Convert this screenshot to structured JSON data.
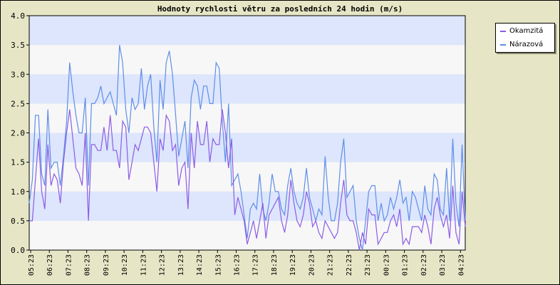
{
  "chart_data": {
    "type": "line",
    "title": "Hodnoty rychlosti větru za posledních 24 hodin (m/s)",
    "xlabel": "",
    "ylabel": "",
    "ylim": [
      0,
      4.0
    ],
    "y_ticks": [
      "0.0",
      "0.5",
      "1.0",
      "1.5",
      "2.0",
      "2.5",
      "3.0",
      "3.5",
      "4.0"
    ],
    "x_ticks": [
      "05:23",
      "06:23",
      "07:23",
      "08:23",
      "09:23",
      "10:23",
      "11:23",
      "12:23",
      "13:23",
      "14:23",
      "15:23",
      "16:23",
      "17:23",
      "18:23",
      "19:23",
      "20:23",
      "21:23",
      "22:23",
      "23:23",
      "00:23",
      "01:23",
      "02:23",
      "03:23",
      "04:23"
    ],
    "grid": true,
    "legend_position": "top-right",
    "series": [
      {
        "name": "Okamzitá",
        "color": "#8c5ce6",
        "values": [
          0.5,
          0.5,
          1.2,
          1.9,
          1.0,
          0.7,
          1.8,
          1.1,
          1.3,
          1.2,
          0.8,
          1.5,
          2.0,
          2.4,
          1.9,
          1.4,
          1.3,
          1.1,
          2.0,
          0.5,
          1.8,
          1.8,
          1.7,
          1.7,
          2.1,
          1.7,
          2.3,
          1.7,
          1.7,
          1.4,
          2.2,
          2.1,
          1.2,
          1.5,
          1.8,
          1.7,
          1.9,
          2.1,
          2.1,
          2.0,
          1.5,
          1.0,
          1.9,
          1.7,
          2.3,
          2.2,
          1.7,
          1.8,
          1.1,
          1.4,
          1.5,
          0.7,
          2.0,
          1.4,
          2.2,
          1.8,
          1.8,
          2.2,
          1.5,
          1.9,
          1.8,
          1.8,
          2.4,
          2.0,
          1.4,
          1.9,
          0.6,
          0.9,
          0.7,
          0.5,
          0.1,
          0.3,
          0.5,
          0.2,
          0.5,
          0.8,
          0.2,
          0.6,
          0.7,
          0.8,
          0.9,
          0.5,
          0.3,
          0.6,
          1.2,
          0.8,
          0.5,
          0.4,
          0.6,
          1.0,
          0.8,
          0.4,
          0.5,
          0.3,
          0.2,
          0.5,
          0.4,
          0.3,
          0.2,
          0.3,
          0.8,
          1.2,
          0.6,
          0.5,
          0.5,
          0.3,
          0.0,
          0.3,
          0.1,
          0.7,
          0.6,
          0.6,
          0.1,
          0.2,
          0.3,
          0.3,
          0.5,
          0.6,
          0.4,
          0.7,
          0.1,
          0.2,
          0.1,
          0.4,
          0.4,
          0.4,
          0.3,
          0.6,
          0.4,
          0.1,
          0.7,
          0.9,
          0.6,
          0.4,
          0.6,
          0.2,
          1.1,
          0.3,
          0.1,
          1.0,
          0.4
        ]
      },
      {
        "name": "Nárazová",
        "color": "#5f8ee8",
        "values": [
          0.8,
          1.2,
          2.3,
          2.3,
          1.3,
          1.1,
          2.4,
          1.4,
          1.5,
          1.5,
          1.1,
          1.6,
          2.2,
          3.2,
          2.7,
          2.3,
          2.0,
          2.0,
          2.6,
          1.1,
          2.5,
          2.5,
          2.6,
          2.8,
          2.5,
          2.6,
          2.7,
          2.5,
          2.3,
          3.5,
          3.2,
          2.4,
          2.0,
          2.6,
          2.4,
          2.5,
          3.1,
          2.4,
          2.8,
          3.0,
          2.1,
          1.5,
          2.9,
          2.4,
          3.2,
          3.4,
          3.0,
          2.3,
          1.6,
          1.9,
          2.2,
          1.4,
          2.6,
          2.9,
          2.8,
          2.4,
          2.8,
          2.8,
          2.5,
          2.5,
          3.2,
          3.1,
          2.2,
          1.5,
          2.5,
          1.1,
          1.2,
          1.3,
          1.0,
          0.6,
          0.2,
          0.7,
          0.8,
          0.7,
          1.3,
          0.7,
          0.5,
          0.8,
          1.3,
          1.0,
          1.0,
          0.7,
          0.6,
          1.1,
          1.4,
          1.0,
          0.8,
          0.7,
          0.9,
          1.4,
          0.9,
          0.7,
          0.5,
          0.7,
          0.6,
          1.6,
          0.9,
          0.5,
          0.5,
          0.8,
          1.5,
          1.9,
          0.9,
          1.0,
          1.1,
          0.5,
          0.2,
          0.0,
          0.5,
          1.0,
          1.1,
          1.1,
          0.5,
          0.8,
          0.5,
          0.6,
          0.9,
          0.7,
          0.9,
          1.2,
          0.8,
          0.9,
          0.5,
          1.0,
          0.9,
          0.7,
          0.5,
          1.1,
          0.7,
          0.6,
          1.3,
          1.2,
          0.7,
          0.6,
          1.4,
          0.5,
          1.9,
          0.8,
          0.4,
          1.8,
          0.5
        ]
      }
    ]
  }
}
